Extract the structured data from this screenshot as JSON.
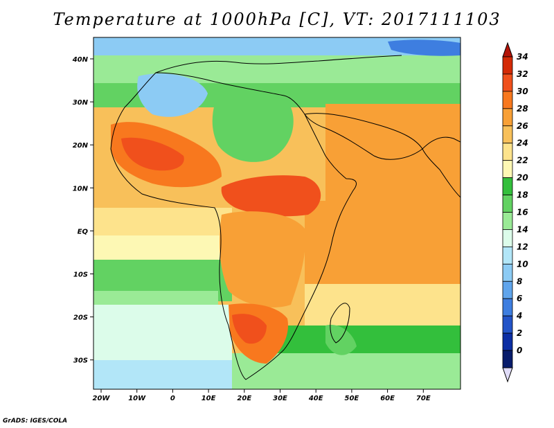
{
  "title": "Temperature at 1000hPa [C], VT: 2017111103",
  "credit": "GrADS: IGES/COLA",
  "lon_ticks": [
    "20W",
    "10W",
    "0",
    "10E",
    "20E",
    "30E",
    "40E",
    "50E",
    "60E",
    "70E"
  ],
  "lat_ticks": [
    "40N",
    "30N",
    "20N",
    "10N",
    "EQ",
    "10S",
    "20S",
    "30S"
  ],
  "colorbar": {
    "labels": [
      "34",
      "32",
      "30",
      "28",
      "26",
      "24",
      "22",
      "20",
      "18",
      "16",
      "14",
      "12",
      "10",
      "8",
      "6",
      "4",
      "2",
      "0"
    ],
    "colors": [
      "#d42a06",
      "#f0501c",
      "#f8781e",
      "#f8a036",
      "#f8c05a",
      "#fde38c",
      "#fdf8b4",
      "#33bf3c",
      "#62d262",
      "#9aea96",
      "#dcfcea",
      "#b2e6f8",
      "#8ccbf4",
      "#60a5ec",
      "#3e7ee0",
      "#2354c8",
      "#0c2ea4",
      "#081c6c"
    ],
    "top_arrow_color": "#b41408",
    "bottom_arrow_color": "#e0dcf8"
  },
  "map_colors": {
    "ocean_warm": "#f8c05a",
    "ocean_hot": "#f8a036",
    "cool_green": "#62d262",
    "green": "#33bf3c",
    "light_green": "#9aea96",
    "pale": "#dcfcea",
    "blue_light": "#b2e6f8",
    "blue": "#8ccbf4",
    "blue_mid": "#60a5ec",
    "hot": "#f0501c",
    "very_hot": "#d42a06",
    "orange": "#f8781e"
  }
}
